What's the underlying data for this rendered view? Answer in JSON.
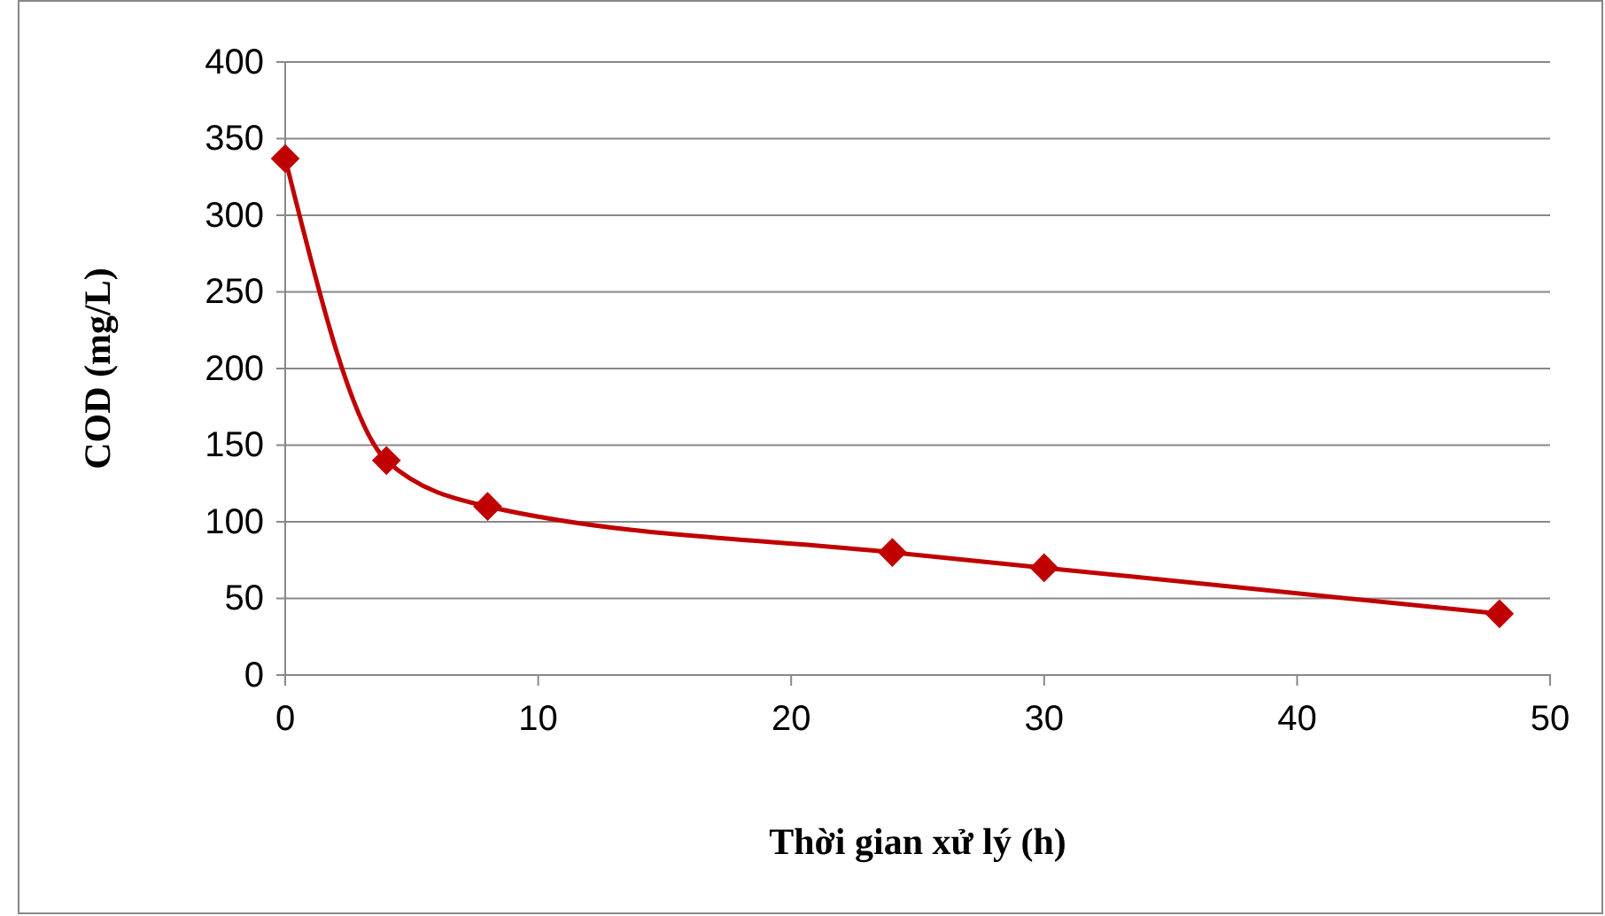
{
  "chart_data": {
    "type": "line",
    "xlabel": "Thời gian xử lý (h)",
    "ylabel": "COD (mg/L)",
    "x": [
      0,
      4,
      8,
      24,
      30,
      48
    ],
    "series": [
      {
        "color": "#c00000",
        "values": [
          337,
          140,
          110,
          80,
          70,
          40
        ]
      }
    ],
    "xlim": [
      0,
      50
    ],
    "xticks": [
      0,
      10,
      20,
      30,
      40,
      50
    ],
    "ylim": [
      0,
      400
    ],
    "yticks": [
      0,
      50,
      100,
      150,
      200,
      250,
      300,
      350,
      400
    ],
    "grid": "y",
    "marker": "diamond",
    "line_style": "solid"
  }
}
